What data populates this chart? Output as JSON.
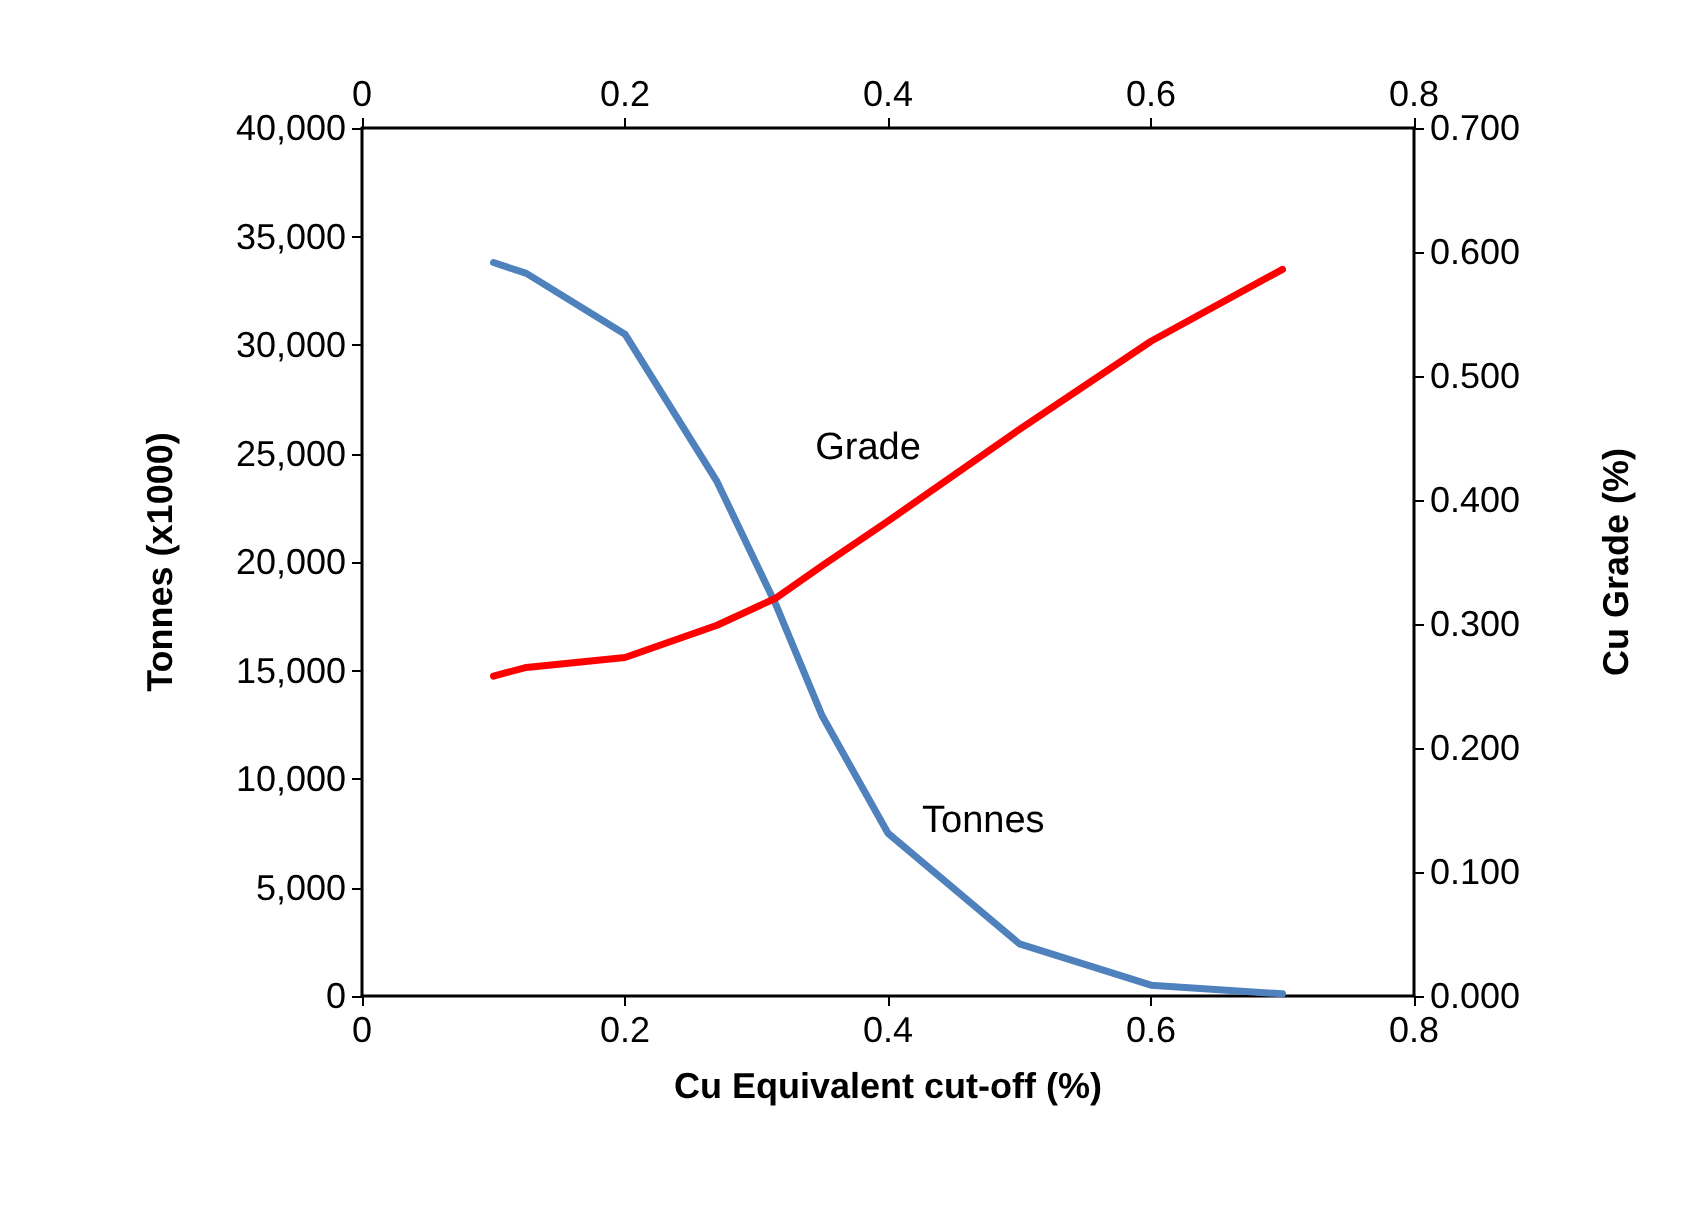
{
  "chart_data": {
    "type": "line",
    "xlabel": "Cu Equivalent cut-off (%)",
    "ylabel": "Tonnes (x1000)",
    "y2label": "Cu Grade (%)",
    "x": [
      0.1,
      0.125,
      0.2,
      0.27,
      0.315,
      0.35,
      0.4,
      0.5,
      0.6,
      0.7
    ],
    "series": [
      {
        "name": "Tonnes",
        "color": "#4f81bd",
        "values": [
          33800,
          33300,
          30500,
          23700,
          18000,
          12900,
          7500,
          2400,
          500,
          100
        ]
      },
      {
        "name": "Grade",
        "color": "#ff0000",
        "axis": "y2",
        "values": [
          0.258,
          0.265,
          0.273,
          0.299,
          0.321,
          0.347,
          0.383,
          0.457,
          0.528,
          0.586
        ]
      }
    ],
    "xlim": [
      0,
      0.8
    ],
    "xticks": [
      0,
      0.2,
      0.4,
      0.6,
      0.8
    ],
    "x2lim": [
      0,
      0.8
    ],
    "x2ticks": [
      0,
      0.2,
      0.4,
      0.6,
      0.8
    ],
    "ylim": [
      0,
      40000
    ],
    "yticks": [
      {
        "value": 0,
        "label": "0"
      },
      {
        "value": 5000,
        "label": "5,000"
      },
      {
        "value": 10000,
        "label": "10,000"
      },
      {
        "value": 15000,
        "label": "15,000"
      },
      {
        "value": 20000,
        "label": "20,000"
      },
      {
        "value": 25000,
        "label": "25,000"
      },
      {
        "value": 30000,
        "label": "30,000"
      },
      {
        "value": 35000,
        "label": "35,000"
      },
      {
        "value": 40000,
        "label": "40,000"
      }
    ],
    "y2lim": [
      0,
      0.7
    ],
    "y2ticks": [
      {
        "value": 0,
        "label": "0.000"
      },
      {
        "value": 0.1,
        "label": "0.100"
      },
      {
        "value": 0.2,
        "label": "0.200"
      },
      {
        "value": 0.3,
        "label": "0.300"
      },
      {
        "value": 0.4,
        "label": "0.400"
      },
      {
        "value": 0.5,
        "label": "0.500"
      },
      {
        "value": 0.6,
        "label": "0.600"
      },
      {
        "value": 0.7,
        "label": "0.700"
      }
    ],
    "grid": false,
    "legend": false,
    "marker": "none",
    "line_style": "solid"
  }
}
